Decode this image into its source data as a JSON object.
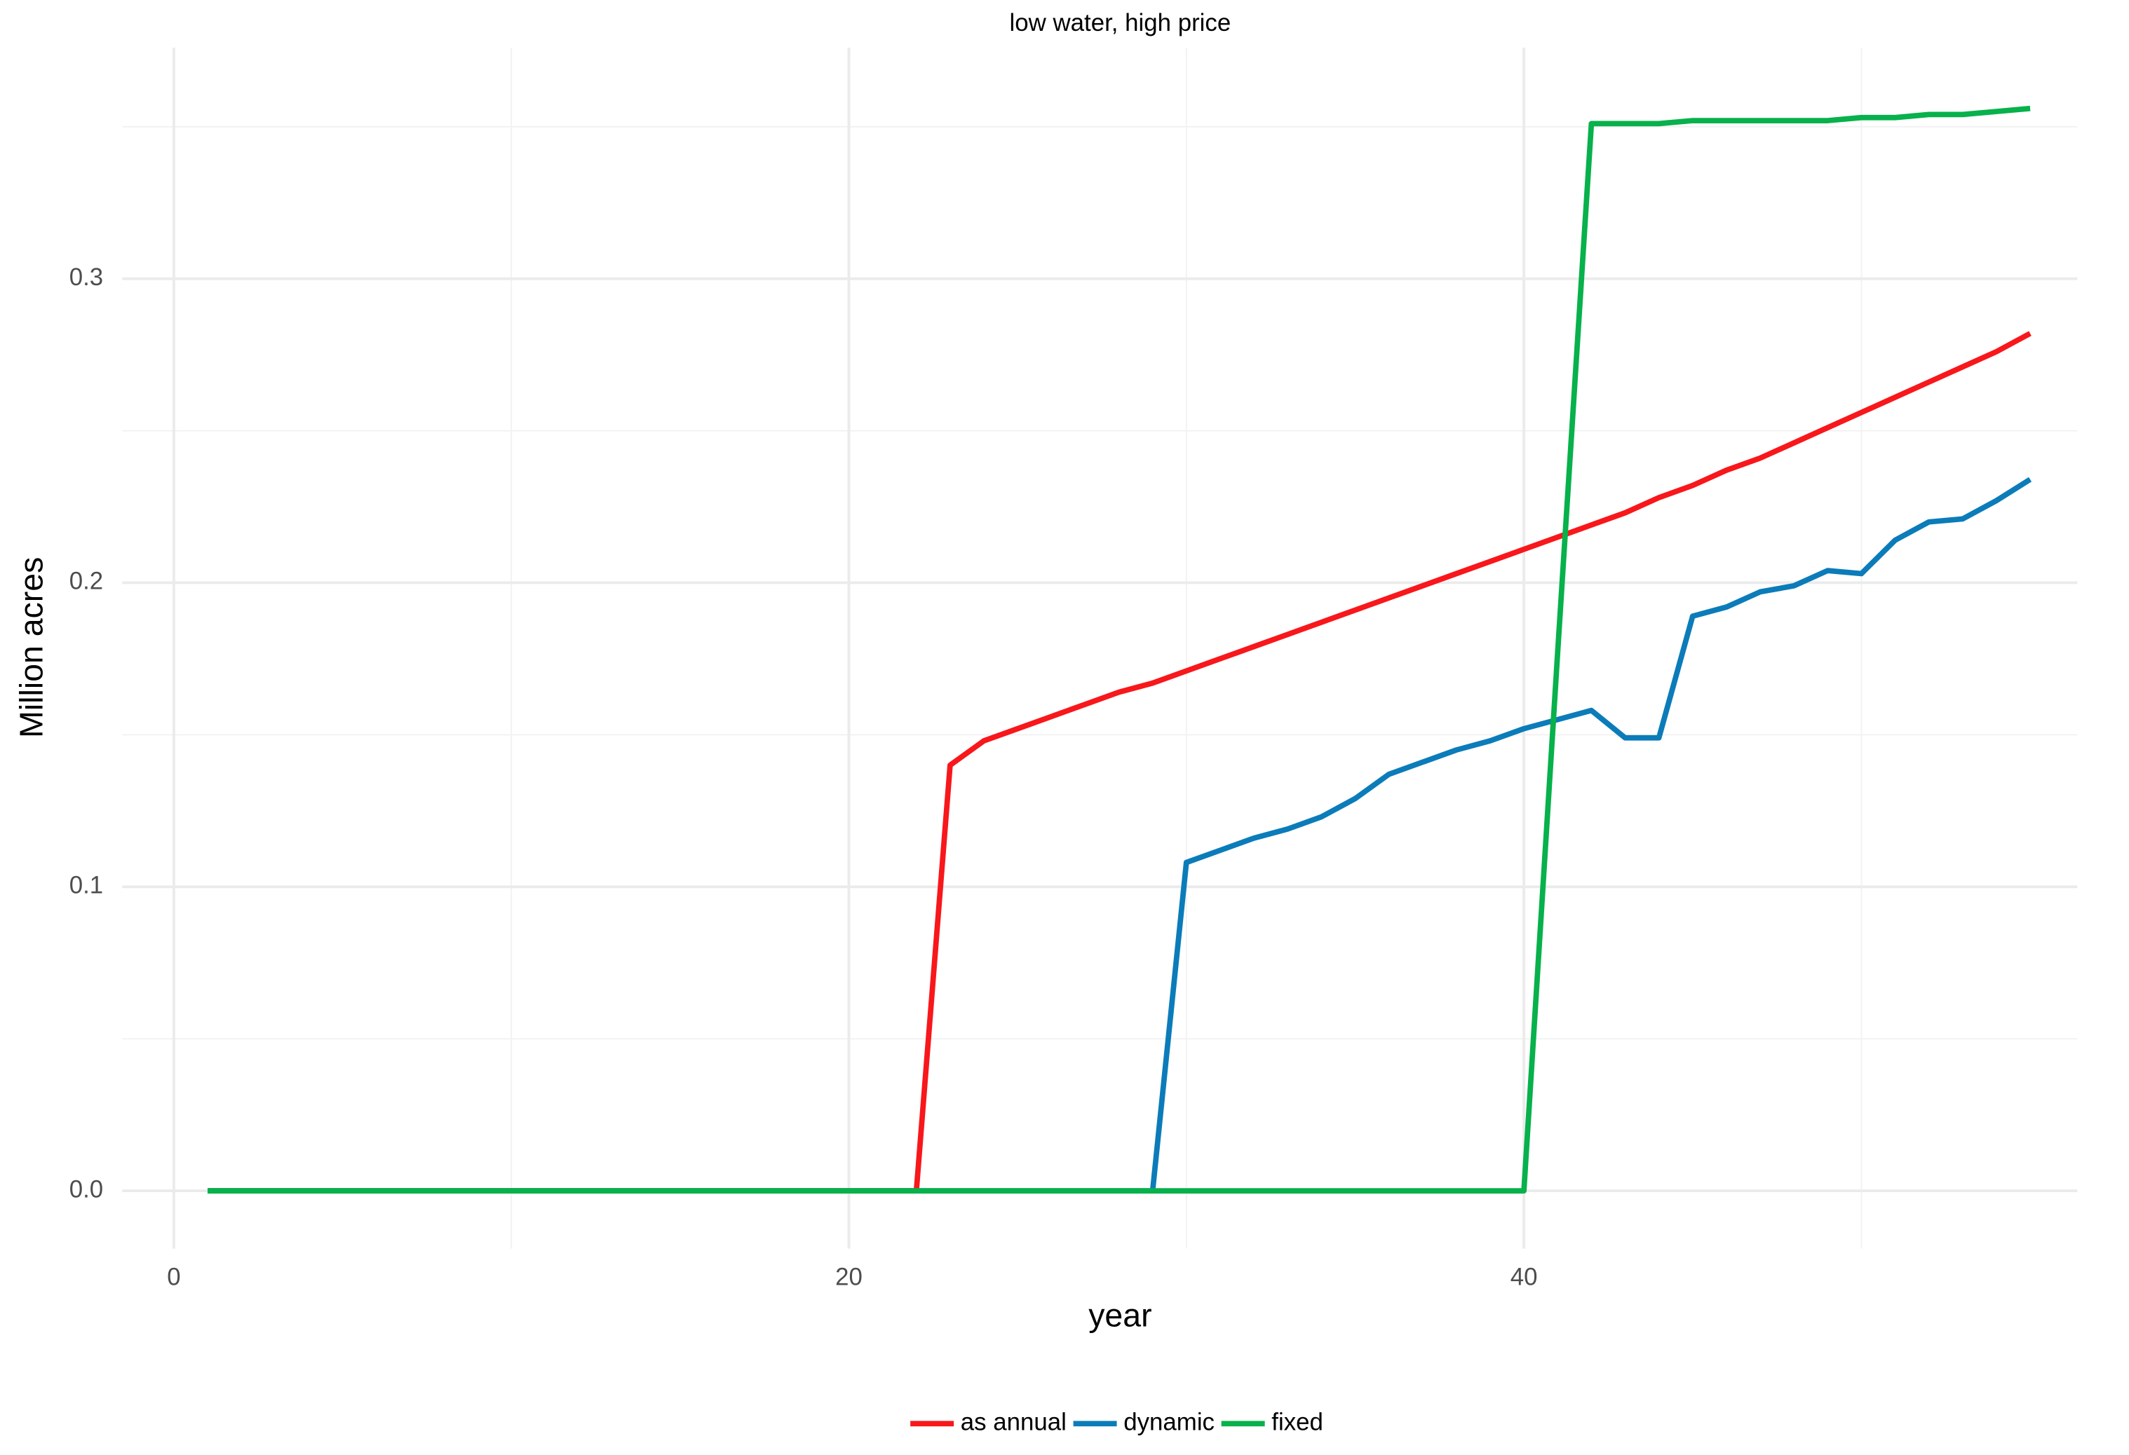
{
  "chart_data": {
    "type": "line",
    "title": "low water, high price",
    "xlabel": "year",
    "ylabel": "Million acres",
    "x": [
      1,
      2,
      3,
      4,
      5,
      6,
      7,
      8,
      9,
      10,
      11,
      12,
      13,
      14,
      15,
      16,
      17,
      18,
      19,
      20,
      21,
      22,
      23,
      24,
      25,
      26,
      27,
      28,
      29,
      30,
      31,
      32,
      33,
      34,
      35,
      36,
      37,
      38,
      39,
      40,
      41,
      42,
      43,
      44,
      45,
      46,
      47,
      48,
      49,
      50,
      51,
      52,
      53,
      54,
      55
    ],
    "series": [
      {
        "name": "as annual",
        "color": "#f8171b",
        "values": [
          0,
          0,
          0,
          0,
          0,
          0,
          0,
          0,
          0,
          0,
          0,
          0,
          0,
          0,
          0,
          0,
          0,
          0,
          0,
          0,
          0,
          0,
          0.14,
          0.148,
          0.152,
          0.156,
          0.16,
          0.164,
          0.167,
          0.171,
          0.175,
          0.179,
          0.183,
          0.187,
          0.191,
          0.195,
          0.199,
          0.203,
          0.207,
          0.211,
          0.215,
          0.219,
          0.223,
          0.228,
          0.232,
          0.237,
          0.241,
          0.246,
          0.251,
          0.256,
          0.261,
          0.266,
          0.271,
          0.276,
          0.282
        ]
      },
      {
        "name": "dynamic",
        "color": "#0b7cb9",
        "values": [
          0,
          0,
          0,
          0,
          0,
          0,
          0,
          0,
          0,
          0,
          0,
          0,
          0,
          0,
          0,
          0,
          0,
          0,
          0,
          0,
          0,
          0,
          0,
          0,
          0,
          0,
          0,
          0,
          0,
          0.108,
          0.112,
          0.116,
          0.119,
          0.123,
          0.129,
          0.137,
          0.141,
          0.145,
          0.148,
          0.152,
          0.155,
          0.158,
          0.149,
          0.149,
          0.189,
          0.192,
          0.197,
          0.199,
          0.204,
          0.203,
          0.214,
          0.22,
          0.221,
          0.227,
          0.234
        ]
      },
      {
        "name": "fixed",
        "color": "#07b14b",
        "values": [
          0,
          0,
          0,
          0,
          0,
          0,
          0,
          0,
          0,
          0,
          0,
          0,
          0,
          0,
          0,
          0,
          0,
          0,
          0,
          0,
          0,
          0,
          0,
          0,
          0,
          0,
          0,
          0,
          0,
          0,
          0,
          0,
          0,
          0,
          0,
          0,
          0,
          0,
          0,
          0,
          0.177,
          0.351,
          0.351,
          0.351,
          0.352,
          0.352,
          0.352,
          0.352,
          0.352,
          0.353,
          0.353,
          0.354,
          0.354,
          0.355,
          0.356
        ]
      }
    ],
    "xlim": [
      -1.53,
      56.4
    ],
    "xticks": [
      0,
      20,
      40
    ],
    "x_minor_ticks": [
      10,
      30,
      50
    ],
    "ylim": [
      -0.019,
      0.376
    ],
    "yticks": [
      {
        "value": 0,
        "label": "0.0"
      },
      0.1,
      0.2,
      0.3
    ],
    "y_minor_ticks": [
      0.05,
      0.15,
      0.25,
      0.35
    ],
    "grid": true,
    "legend": "bottom"
  }
}
